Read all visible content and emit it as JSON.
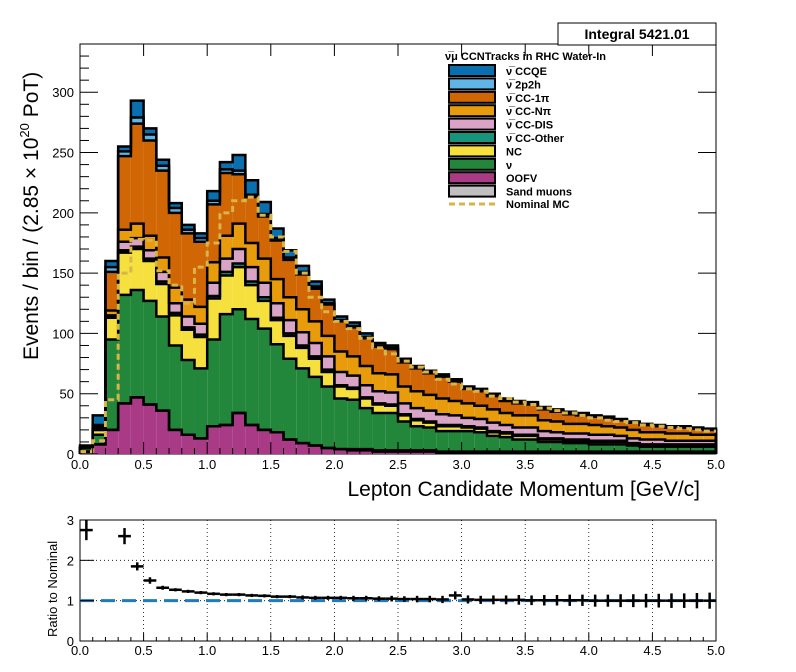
{
  "chart_data": [
    {
      "type": "area",
      "subtype": "stacked-step-histogram",
      "title": "",
      "xlabel": "Lepton Candidate Momentum [GeV/c]",
      "ylabel": "Events / bin / (2.85  × 10",
      "ylabel_sup": "20",
      "ylabel_tail": " PoT)",
      "xlim": [
        0,
        5
      ],
      "ylim": [
        0,
        340
      ],
      "x_ticks": [
        "0.0",
        "0.5",
        "1.0",
        "1.5",
        "2.0",
        "2.5",
        "3.0",
        "3.5",
        "4.0",
        "4.5",
        "5.0"
      ],
      "y_ticks": [
        "0",
        "50",
        "100",
        "150",
        "200",
        "250",
        "300"
      ],
      "grid": false,
      "legend_position": "top-right",
      "legend_title": "ν̅μ CCNTracks in RHC Water-In",
      "integral_label": "Integral 5421.01",
      "bin_edges": [
        0.0,
        0.1,
        0.2,
        0.3,
        0.4,
        0.5,
        0.6,
        0.7,
        0.8,
        0.9,
        1.0,
        1.1,
        1.2,
        1.3,
        1.4,
        1.5,
        1.6,
        1.7,
        1.8,
        1.9,
        2.0,
        2.1,
        2.2,
        2.3,
        2.4,
        2.5,
        2.6,
        2.7,
        2.8,
        2.9,
        3.0,
        3.1,
        3.2,
        3.3,
        3.4,
        3.5,
        3.6,
        3.7,
        3.8,
        3.9,
        4.0,
        4.1,
        4.2,
        4.3,
        4.4,
        4.5,
        4.6,
        4.7,
        4.8,
        4.9,
        5.0
      ],
      "series": [
        {
          "name": "OOFV",
          "color": "#a93b86",
          "values": [
            2,
            8,
            20,
            42,
            47,
            41,
            36,
            20,
            16,
            13,
            23,
            24,
            34,
            24,
            20,
            18,
            12,
            9,
            7,
            5,
            4,
            3,
            3,
            2,
            2,
            2,
            2,
            2,
            1,
            1,
            1,
            1,
            1,
            1,
            1,
            1,
            1,
            1,
            1,
            1,
            1,
            1,
            1,
            1,
            1,
            1,
            1,
            1,
            1,
            1
          ]
        },
        {
          "name": "Sand muons",
          "color": "#c0c0c0",
          "values": [
            0,
            0,
            0,
            0,
            0,
            0,
            0,
            0,
            0,
            0,
            0,
            0,
            0,
            0,
            0,
            0,
            0,
            0,
            0,
            0,
            0,
            1,
            1,
            1,
            1,
            1,
            1,
            1,
            1,
            1,
            1,
            1,
            1,
            1,
            1,
            1,
            1,
            1,
            1,
            1,
            1,
            1,
            1,
            1,
            1,
            1,
            1,
            1,
            1,
            1
          ]
        },
        {
          "name": "ν",
          "color": "#22873a",
          "values": [
            3,
            8,
            75,
            90,
            89,
            86,
            78,
            70,
            62,
            58,
            72,
            92,
            86,
            88,
            84,
            73,
            67,
            62,
            57,
            51,
            42,
            41,
            34,
            31,
            31,
            24,
            20,
            19,
            17,
            17,
            17,
            16,
            13,
            12,
            10,
            10,
            8,
            8,
            7,
            7,
            6,
            6,
            6,
            5,
            4,
            4,
            4,
            4,
            4,
            4
          ]
        },
        {
          "name": "NC",
          "color": "#f5e03d",
          "values": [
            0,
            4,
            18,
            35,
            34,
            33,
            27,
            25,
            25,
            26,
            34,
            32,
            35,
            28,
            23,
            20,
            19,
            17,
            15,
            12,
            10,
            9,
            8,
            7,
            6,
            5,
            5,
            4,
            4,
            4,
            3,
            3,
            3,
            3,
            3,
            3,
            2,
            2,
            2,
            2,
            2,
            2,
            2,
            1,
            1,
            1,
            1,
            1,
            1,
            1
          ]
        },
        {
          "name": "ν̅ CC-Other",
          "color": "#16957c",
          "values": [
            0,
            0,
            1,
            2,
            2,
            2,
            2,
            2,
            2,
            2,
            2,
            3,
            3,
            3,
            3,
            2,
            2,
            2,
            2,
            2,
            1,
            1,
            1,
            1,
            1,
            1,
            1,
            1,
            1,
            1,
            1,
            1,
            1,
            1,
            1,
            1,
            1,
            1,
            1,
            1,
            1,
            1,
            1,
            1,
            1,
            1,
            1,
            1,
            1,
            1
          ]
        },
        {
          "name": "ν̅ CC-DIS",
          "color": "#d9a4c6",
          "values": [
            0,
            0,
            1,
            7,
            7,
            7,
            8,
            8,
            9,
            9,
            11,
            11,
            12,
            12,
            12,
            12,
            11,
            11,
            11,
            11,
            11,
            10,
            10,
            10,
            10,
            9,
            9,
            9,
            9,
            8,
            7,
            7,
            7,
            6,
            6,
            6,
            6,
            5,
            5,
            5,
            5,
            5,
            4,
            4,
            4,
            4,
            3,
            3,
            3,
            3
          ]
        },
        {
          "name": "ν̅ CC-Nπ",
          "color": "#e89c0c",
          "values": [
            0,
            1,
            4,
            10,
            12,
            12,
            12,
            13,
            14,
            14,
            17,
            19,
            21,
            20,
            20,
            20,
            19,
            19,
            18,
            17,
            17,
            16,
            16,
            15,
            15,
            14,
            14,
            13,
            13,
            12,
            12,
            11,
            11,
            10,
            10,
            10,
            9,
            9,
            8,
            8,
            8,
            7,
            7,
            7,
            6,
            6,
            6,
            6,
            5,
            5
          ]
        },
        {
          "name": "ν̅ CC-1π",
          "color": "#d06604",
          "values": [
            0,
            2,
            32,
            61,
            83,
            79,
            72,
            62,
            55,
            54,
            48,
            52,
            41,
            38,
            35,
            32,
            31,
            29,
            27,
            26,
            25,
            24,
            23,
            22,
            21,
            20,
            19,
            18,
            18,
            16,
            12,
            12,
            11,
            10,
            10,
            9,
            9,
            8,
            8,
            7,
            7,
            7,
            6,
            6,
            6,
            5,
            5,
            5,
            5,
            4
          ]
        },
        {
          "name": "ν̅ 2p2h",
          "color": "#5fb5e6",
          "values": [
            0,
            1,
            4,
            4,
            5,
            5,
            4,
            4,
            3,
            3,
            3,
            3,
            3,
            2,
            2,
            2,
            2,
            2,
            2,
            1,
            1,
            1,
            1,
            1,
            1,
            1,
            1,
            1,
            1,
            1,
            1,
            1,
            1,
            1,
            1,
            1,
            1,
            1,
            1,
            1,
            0,
            0,
            0,
            0,
            0,
            0,
            0,
            0,
            0,
            0
          ]
        },
        {
          "name": "ν̅ CCQE",
          "color": "#0a6fae",
          "values": [
            2,
            8,
            5,
            4,
            14,
            5,
            5,
            4,
            4,
            4,
            8,
            6,
            13,
            12,
            10,
            8,
            6,
            5,
            4,
            3,
            3,
            3,
            3,
            2,
            2,
            2,
            1,
            1,
            1,
            1,
            1,
            1,
            1,
            1,
            1,
            1,
            1,
            1,
            1,
            1,
            1,
            1,
            1,
            1,
            1,
            1,
            1,
            1,
            1,
            1
          ]
        }
      ],
      "nominal_mc": {
        "name": "Nominal MC",
        "color": "#d9b44a",
        "values": [
          2,
          11,
          45,
          150,
          178,
          177,
          152,
          140,
          125,
          155,
          175,
          200,
          210,
          213,
          198,
          180,
          168,
          150,
          130,
          118,
          110,
          104,
          96,
          88,
          83,
          77,
          72,
          68,
          62,
          58,
          54,
          52,
          48,
          46,
          43,
          41,
          38,
          36,
          34,
          32,
          30,
          28,
          27,
          26,
          24,
          23,
          22,
          21,
          20,
          19
        ]
      }
    },
    {
      "type": "scatter",
      "subtype": "ratio-with-errors",
      "title": "",
      "xlabel": "",
      "ylabel": "Ratio to Nominal",
      "xlim": [
        0,
        5
      ],
      "ylim": [
        0,
        3
      ],
      "x_ticks": [
        "0.0",
        "0.5",
        "1.0",
        "1.5",
        "2.0",
        "2.5",
        "3.0",
        "3.5",
        "4.0",
        "4.5",
        "5.0"
      ],
      "y_ticks": [
        "0",
        "1",
        "2",
        "3"
      ],
      "grid": true,
      "reference_line": {
        "y": 1,
        "color": "#1f7bbf"
      },
      "x": [
        0.05,
        0.35,
        0.45,
        0.55,
        0.65,
        0.75,
        0.85,
        0.95,
        1.05,
        1.15,
        1.25,
        1.35,
        1.45,
        1.55,
        1.65,
        1.75,
        1.85,
        1.95,
        2.05,
        2.15,
        2.25,
        2.35,
        2.45,
        2.55,
        2.65,
        2.75,
        2.85,
        2.95,
        3.05,
        3.15,
        3.25,
        3.35,
        3.45,
        3.55,
        3.65,
        3.75,
        3.85,
        3.95,
        4.05,
        4.15,
        4.25,
        4.35,
        4.45,
        4.55,
        4.65,
        4.75,
        4.85,
        4.95
      ],
      "y": [
        2.75,
        2.6,
        1.85,
        1.5,
        1.32,
        1.27,
        1.23,
        1.2,
        1.17,
        1.15,
        1.15,
        1.13,
        1.12,
        1.1,
        1.1,
        1.08,
        1.07,
        1.07,
        1.07,
        1.06,
        1.06,
        1.05,
        1.05,
        1.04,
        1.04,
        1.04,
        1.03,
        1.13,
        1.03,
        1.02,
        1.02,
        1.02,
        1.02,
        1.01,
        1.01,
        1.01,
        1.01,
        1.01,
        1.0,
        1.0,
        1.0,
        1.0,
        1.0,
        1.0,
        1.0,
        1.0,
        1.0,
        1.0
      ],
      "yerr": [
        0.25,
        0.2,
        0.1,
        0.08,
        0.05,
        0.04,
        0.04,
        0.04,
        0.04,
        0.04,
        0.04,
        0.04,
        0.04,
        0.04,
        0.04,
        0.05,
        0.05,
        0.05,
        0.05,
        0.06,
        0.06,
        0.06,
        0.07,
        0.07,
        0.08,
        0.08,
        0.09,
        0.1,
        0.1,
        0.1,
        0.11,
        0.11,
        0.12,
        0.12,
        0.13,
        0.13,
        0.14,
        0.14,
        0.15,
        0.15,
        0.16,
        0.16,
        0.17,
        0.17,
        0.18,
        0.18,
        0.19,
        0.2
      ]
    }
  ]
}
